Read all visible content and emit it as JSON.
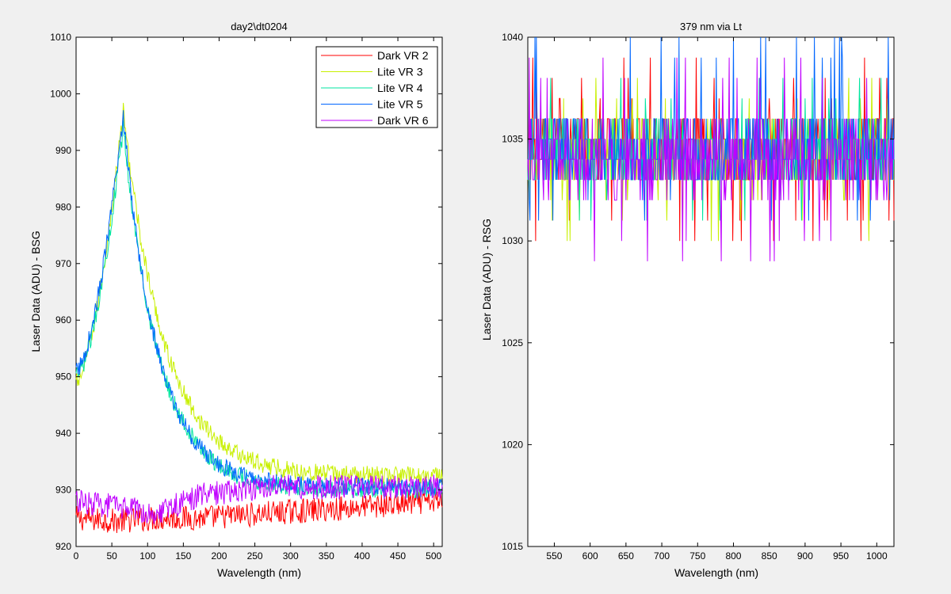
{
  "chart_data": [
    {
      "type": "line",
      "title": "day2\\dt0204",
      "xlabel": "Wavelength (nm)",
      "ylabel": "Laser Data (ADU) - BSG",
      "xlim": [
        0,
        512
      ],
      "ylim": [
        920,
        1010
      ],
      "xticks": [
        0,
        50,
        100,
        150,
        200,
        250,
        300,
        350,
        400,
        450,
        500
      ],
      "yticks": [
        920,
        930,
        940,
        950,
        960,
        970,
        980,
        990,
        1000,
        1010
      ],
      "grid": false,
      "legend_position": "top-right",
      "series": [
        {
          "name": "Dark VR 2",
          "color": "#ff0000",
          "shape": "flat",
          "values": [
            925,
            924.5,
            925,
            925,
            925.5,
            926,
            926.5,
            927,
            927.5,
            928
          ],
          "noise": 2.2
        },
        {
          "name": "Lite VR 3",
          "color": "#c8f000",
          "shape": "peak",
          "base": 949,
          "peak_x": 66,
          "peak": 997,
          "tail": 932.5,
          "decay": 57,
          "noise": 1.6
        },
        {
          "name": "Lite VR 4",
          "color": "#00e5a0",
          "shape": "peak",
          "base": 950,
          "peak_x": 66,
          "peak": 994,
          "tail": 930,
          "decay": 50,
          "noise": 1.6
        },
        {
          "name": "Lite VR 5",
          "color": "#0066ff",
          "shape": "peak",
          "base": 951,
          "peak_x": 66,
          "peak": 996,
          "tail": 930.5,
          "decay": 48,
          "noise": 1.6
        },
        {
          "name": "Dark VR 6",
          "color": "#c000ff",
          "shape": "flat",
          "values": [
            928,
            927,
            926,
            929,
            930,
            930.5,
            930.5,
            930.5,
            930.5,
            930.5
          ],
          "noise": 2.2
        }
      ]
    },
    {
      "type": "line",
      "title": "379 nm via Lt",
      "xlabel": "Wavelength (nm)",
      "ylabel": "Laser Data (ADU) - RSG",
      "xlim": [
        513,
        1024
      ],
      "ylim": [
        1015,
        1040
      ],
      "xticks": [
        550,
        600,
        650,
        700,
        750,
        800,
        850,
        900,
        950,
        1000
      ],
      "yticks": [
        1015,
        1020,
        1025,
        1030,
        1035,
        1040
      ],
      "grid": false,
      "series": [
        {
          "name": "Dark VR 2",
          "color": "#ff0000",
          "center": 1034.8,
          "min": 1030,
          "max": 1039
        },
        {
          "name": "Lite VR 3",
          "color": "#c8f000",
          "center": 1034.2,
          "min": 1030,
          "max": 1038
        },
        {
          "name": "Lite VR 4",
          "color": "#00e5a0",
          "center": 1034.3,
          "min": 1031,
          "max": 1038
        },
        {
          "name": "Lite VR 5",
          "color": "#0066ff",
          "center": 1034.5,
          "min": 1031,
          "max": 1040
        },
        {
          "name": "Dark VR 6",
          "color": "#c000ff",
          "center": 1034.0,
          "min": 1029,
          "max": 1039
        }
      ]
    }
  ]
}
